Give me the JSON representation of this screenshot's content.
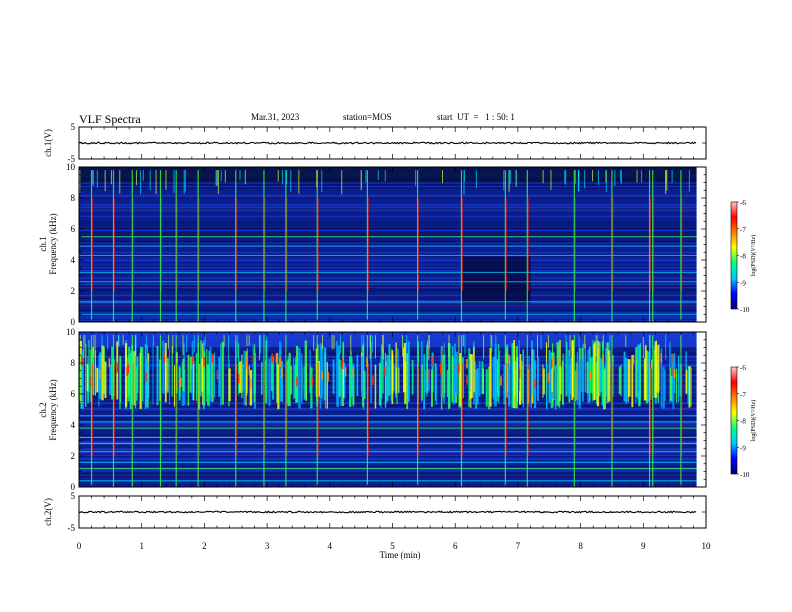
{
  "header": {
    "title": "VLF Spectra",
    "date": "Mar.31, 2023",
    "station": "station=MOS",
    "start": "start  UT  =   1 : 50: 1"
  },
  "chart_data": [
    {
      "type": "line",
      "panel": "waveform",
      "ylabel": "ch.1(V)",
      "ylim": [
        -5,
        5
      ],
      "yticks": [
        "5",
        "0",
        "-5"
      ],
      "xlim": [
        0,
        10
      ],
      "baseline": 0
    },
    {
      "type": "heatmap",
      "panel": "spectrogram",
      "ylabel": "ch.1\nFrequency (kHz)",
      "ylim": [
        0,
        10
      ],
      "yticks": [
        "0",
        "2",
        "4",
        "6",
        "8",
        "10"
      ],
      "xlim": [
        0,
        10
      ],
      "colorbar": {
        "label": "log(PSD)(V²/Hz)",
        "range": [
          -10,
          -6
        ],
        "ticks": [
          "-6",
          "-7",
          "-8",
          "-9",
          "-10"
        ]
      }
    },
    {
      "type": "heatmap",
      "panel": "spectrogram",
      "ylabel": "ch.2\nFrequency (kHz)",
      "ylim": [
        0,
        10
      ],
      "yticks": [
        "0",
        "2",
        "4",
        "6",
        "8",
        "10"
      ],
      "xlim": [
        0,
        10
      ],
      "colorbar": {
        "label": "log(PSD)(V²/Hz)",
        "range": [
          -10,
          -6
        ],
        "ticks": [
          "-6",
          "-7",
          "-8",
          "-9",
          "-10"
        ]
      }
    },
    {
      "type": "line",
      "panel": "waveform",
      "ylabel": "ch.2(V)",
      "ylim": [
        -5,
        5
      ],
      "yticks": [
        "5",
        "0",
        "-5"
      ],
      "xlim": [
        0,
        10
      ],
      "baseline": 0,
      "xlabel": "Time (min)",
      "xticks": [
        "0",
        "1",
        "2",
        "3",
        "4",
        "5",
        "6",
        "7",
        "8",
        "9",
        "10"
      ]
    }
  ],
  "colorbar_colors": [
    "#000080",
    "#0000ff",
    "#00c8ff",
    "#00ff80",
    "#ffff00",
    "#ff8000",
    "#ff0000",
    "#ffc8c8"
  ]
}
